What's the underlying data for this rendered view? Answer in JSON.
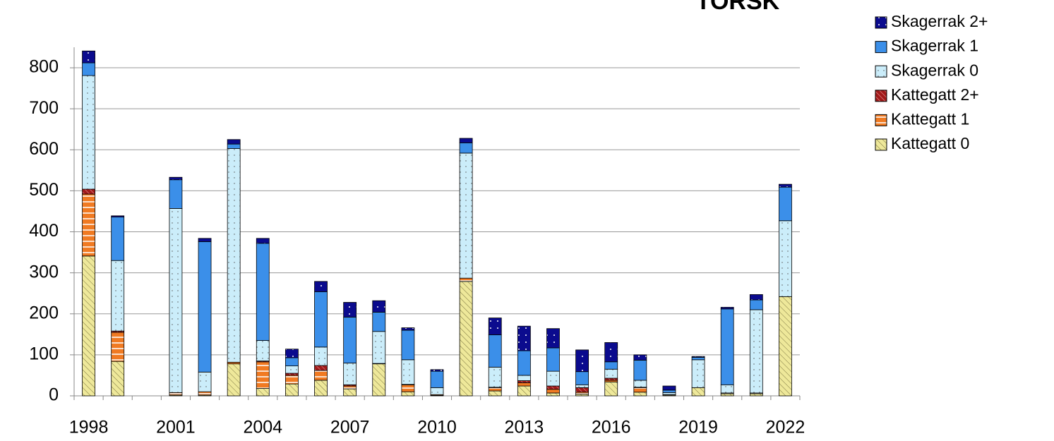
{
  "chart_data": {
    "type": "stacked-bar",
    "title": "TORSK",
    "categories": [
      "1998",
      null,
      null,
      "2001",
      null,
      null,
      "2004",
      null,
      null,
      "2007",
      null,
      null,
      "2010",
      null,
      null,
      "2013",
      null,
      null,
      "2016",
      null,
      null,
      "2019",
      null,
      null,
      "2022"
    ],
    "series": [
      {
        "name": "Kattegatt 0",
        "color": "#eee89a",
        "values": [
          341,
          84,
          0,
          2,
          2,
          78,
          18,
          29,
          38,
          17,
          78,
          10,
          1,
          279,
          12,
          24,
          7,
          4,
          34,
          9,
          2,
          20,
          5,
          5,
          242
        ]
      },
      {
        "name": "Kattegatt 1",
        "color": "#f07a22",
        "values": [
          151,
          71,
          0,
          6,
          8,
          4,
          65,
          21,
          24,
          7,
          0,
          17,
          2,
          8,
          8,
          8,
          9,
          5,
          4,
          11,
          1,
          0,
          2,
          2,
          0
        ]
      },
      {
        "name": "Kattegatt 2+",
        "color": "#a31a1a",
        "values": [
          12,
          3,
          0,
          0,
          0,
          0,
          2,
          5,
          12,
          3,
          1,
          1,
          0,
          0,
          1,
          5,
          8,
          11,
          5,
          1,
          0,
          0,
          0,
          0,
          0
        ]
      },
      {
        "name": "Skagerrak 0",
        "color": "#cbedfa",
        "values": [
          277,
          172,
          0,
          449,
          48,
          521,
          50,
          18,
          45,
          53,
          78,
          60,
          17,
          305,
          49,
          13,
          36,
          7,
          22,
          17,
          5,
          68,
          20,
          203,
          185
        ]
      },
      {
        "name": "Skagerrak 1",
        "color": "#3b8fe9",
        "values": [
          31,
          106,
          0,
          70,
          318,
          11,
          237,
          20,
          135,
          112,
          47,
          72,
          40,
          25,
          79,
          60,
          57,
          32,
          18,
          49,
          6,
          6,
          185,
          24,
          82
        ]
      },
      {
        "name": "Skagerrak 2+",
        "color": "#0b0b8e",
        "values": [
          29,
          3,
          0,
          6,
          8,
          11,
          12,
          21,
          25,
          36,
          28,
          6,
          4,
          11,
          41,
          60,
          47,
          53,
          47,
          13,
          10,
          2,
          4,
          13,
          7
        ]
      }
    ],
    "ylim": [
      0,
      850
    ],
    "yticks": [
      0,
      100,
      200,
      300,
      400,
      500,
      600,
      700,
      800
    ],
    "grid": true,
    "legend": "right"
  }
}
